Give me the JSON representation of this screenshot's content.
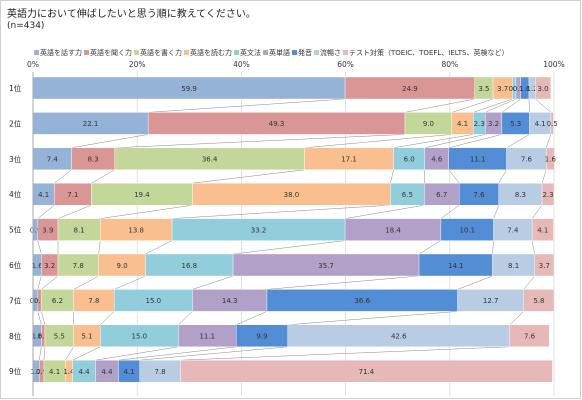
{
  "title": "英語力において伸ばしたいと思う順に教えてください。",
  "subtitle": "(n=434)",
  "chart_data": {
    "type": "bar",
    "orientation": "horizontal",
    "stacked": true,
    "percent": true,
    "xlim": [
      0,
      100
    ],
    "x_ticks": [
      "0%",
      "20%",
      "40%",
      "60%",
      "80%",
      "100%"
    ],
    "categories": [
      "1位",
      "2位",
      "3位",
      "4位",
      "5位",
      "6位",
      "7位",
      "8位",
      "9位"
    ],
    "series": [
      {
        "name": "英語を話す力",
        "color": "#95b3d7",
        "values": [
          59.9,
          22.1,
          7.4,
          4.1,
          0.9,
          1.6,
          0.9,
          1.6,
          1.2
        ]
      },
      {
        "name": "英語を聞く力",
        "color": "#da9694",
        "values": [
          24.9,
          49.3,
          8.3,
          7.1,
          3.9,
          3.2,
          0.7,
          0.7,
          0.9
        ]
      },
      {
        "name": "英語を書く力",
        "color": "#c4d79b",
        "values": [
          3.5,
          9.0,
          36.4,
          19.4,
          8.1,
          7.8,
          6.2,
          5.5,
          4.1
        ]
      },
      {
        "name": "英語を読む力",
        "color": "#fabf8f",
        "values": [
          3.7,
          4.1,
          17.1,
          38.0,
          13.8,
          9.0,
          7.8,
          5.1,
          1.4
        ]
      },
      {
        "name": "英文法",
        "color": "#92cddc",
        "values": [
          0.7,
          2.3,
          6.0,
          6.5,
          33.2,
          16.8,
          15.0,
          15.0,
          4.4
        ]
      },
      {
        "name": "英単語",
        "color": "#b1a0c7",
        "values": [
          0.9,
          3.2,
          4.6,
          6.7,
          18.4,
          35.7,
          14.3,
          11.1,
          4.4
        ]
      },
      {
        "name": "発音",
        "color": "#538dd5",
        "values": [
          1.6,
          5.3,
          11.1,
          7.6,
          10.1,
          14.1,
          36.6,
          9.9,
          4.1
        ]
      },
      {
        "name": "流暢さ",
        "color": "#b8cce4",
        "values": [
          1.2,
          4.1,
          7.6,
          8.3,
          7.4,
          8.1,
          12.7,
          42.6,
          7.8
        ]
      },
      {
        "name": "テスト対策（TOEIC、TOEFL、IELTS、英検など）",
        "color": "#e6b9b8",
        "values": [
          3.0,
          0.5,
          1.6,
          2.3,
          4.1,
          3.7,
          5.8,
          7.6,
          71.4
        ]
      }
    ],
    "labels": [
      [
        "59.9",
        "24.9",
        "3.5",
        "3.7",
        "0.7",
        "0.9",
        "1.6",
        "1.2",
        "3.0"
      ],
      [
        "22.1",
        "49.3",
        "9.0",
        "4.1",
        "2.3",
        "3.2",
        "5.3",
        "4.1",
        "0.5"
      ],
      [
        "7.4",
        "8.3",
        "36.4",
        "17.1",
        "6.0",
        "4.6",
        "11.1",
        "7.6",
        "1.6"
      ],
      [
        "4.1",
        "7.1",
        "19.4",
        "38.0",
        "6.5",
        "6.7",
        "7.6",
        "8.3",
        "2.3"
      ],
      [
        "0.9",
        "3.9",
        "8.1",
        "13.8",
        "33.2",
        "18.4",
        "10.1",
        "7.4",
        "4.1"
      ],
      [
        "1.6",
        "3.2",
        "7.8",
        "9.0",
        "16.8",
        "35.7",
        "14.1",
        "8.1",
        "3.7"
      ],
      [
        "0.9",
        "0.7",
        "6.2",
        "7.8",
        "15.0",
        "14.3",
        "36.6",
        "12.7",
        "5.8"
      ],
      [
        "1.6",
        "0.7",
        "5.5",
        "5.1",
        "15.0",
        "11.1",
        "9.9",
        "42.6",
        "7.6"
      ],
      [
        "1.2",
        "0.9",
        "4.1",
        "1.4",
        "4.4",
        "4.4",
        "4.1",
        "7.8",
        "71.4"
      ]
    ],
    "grid": true,
    "legend_position": "top"
  }
}
